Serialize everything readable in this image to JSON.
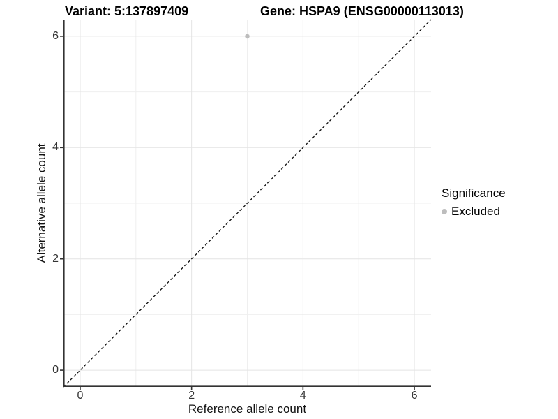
{
  "titles": {
    "variant": "Variant: 5:137897409",
    "gene": "Gene: HSPA9 (ENSG00000113013)"
  },
  "chart_data": {
    "type": "scatter",
    "xlabel": "Reference allele count",
    "ylabel": "Alternative allele count",
    "xlim": [
      -0.3,
      6.3
    ],
    "ylim": [
      -0.3,
      6.3
    ],
    "x_ticks": [
      0,
      2,
      4,
      6
    ],
    "y_ticks": [
      0,
      2,
      4,
      6
    ],
    "x_minor_gridlines": [
      1,
      3,
      5
    ],
    "y_minor_gridlines": [
      1,
      3,
      5
    ],
    "grid": true,
    "points": [
      {
        "x": 3,
        "y": 6,
        "series": "Excluded"
      }
    ],
    "identity_line": {
      "style": "dashed",
      "x1": -0.3,
      "y1": -0.3,
      "x2": 6.3,
      "y2": 6.3
    },
    "legend": {
      "position": "right",
      "title": "Significance",
      "items": [
        {
          "label": "Excluded",
          "color": "#bdbdbd"
        }
      ]
    },
    "colors": {
      "point": "#bdbdbd",
      "grid_major": "#e4e4e4",
      "grid_minor": "#efefef",
      "axis_line": "#333333",
      "tick_text": "#333333",
      "identity_line": "#111111"
    }
  }
}
